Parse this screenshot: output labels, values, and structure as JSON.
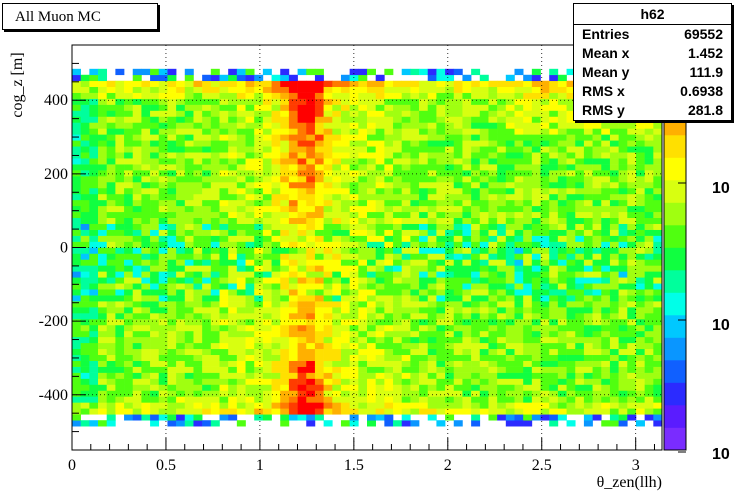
{
  "title": "All Muon MC",
  "stats": {
    "name": "h62",
    "rows": [
      {
        "label": "Entries",
        "value": "69552"
      },
      {
        "label": "Mean x",
        "value": "1.452"
      },
      {
        "label": "Mean y",
        "value": "111.9"
      },
      {
        "label": "RMS x",
        "value": "0.6938"
      },
      {
        "label": "RMS y",
        "value": "281.8"
      }
    ]
  },
  "chart_data": {
    "type": "heatmap",
    "title": "All Muon MC",
    "xlabel": "θ_zen(llh)",
    "ylabel": "cog_z [m]",
    "xlim": [
      0,
      3.14
    ],
    "ylim": [
      -550,
      550
    ],
    "xticks": [
      {
        "value": 0,
        "label": "0"
      },
      {
        "value": 0.5,
        "label": "0.5"
      },
      {
        "value": 1,
        "label": "1"
      },
      {
        "value": 1.5,
        "label": "1.5"
      },
      {
        "value": 2,
        "label": "2"
      },
      {
        "value": 2.5,
        "label": "2.5"
      },
      {
        "value": 3,
        "label": "3"
      }
    ],
    "yticks": [
      {
        "value": -400,
        "label": "-400"
      },
      {
        "value": -200,
        "label": "-200"
      },
      {
        "value": 0,
        "label": "0"
      },
      {
        "value": 200,
        "label": "200"
      },
      {
        "value": 400,
        "label": "400"
      }
    ],
    "grid": true,
    "colorbar": {
      "scale": "log",
      "labels": [
        "10",
        "10",
        "10"
      ]
    },
    "palette": [
      "#7a2cff",
      "#5a1cff",
      "#2b2bff",
      "#1060ff",
      "#0a96ff",
      "#00c8ff",
      "#00ffe8",
      "#00ff9c",
      "#10ff40",
      "#50ff10",
      "#a0ff10",
      "#d8ff10",
      "#ffff00",
      "#ffe000",
      "#ffb000",
      "#ff7a00",
      "#ff3c00",
      "#ff0000"
    ],
    "x_bin_edges": [
      0,
      3.14,
      68
    ],
    "y_bin_edges": [
      -550,
      550,
      68
    ],
    "summary": "Dense band from θ≈0 to 3.14 and cog_z≈-470 to 470; strong vertical ridge at θ≈1.15–1.35 peaking near cog_z≈450, second hot area near cog_z≈-400."
  }
}
